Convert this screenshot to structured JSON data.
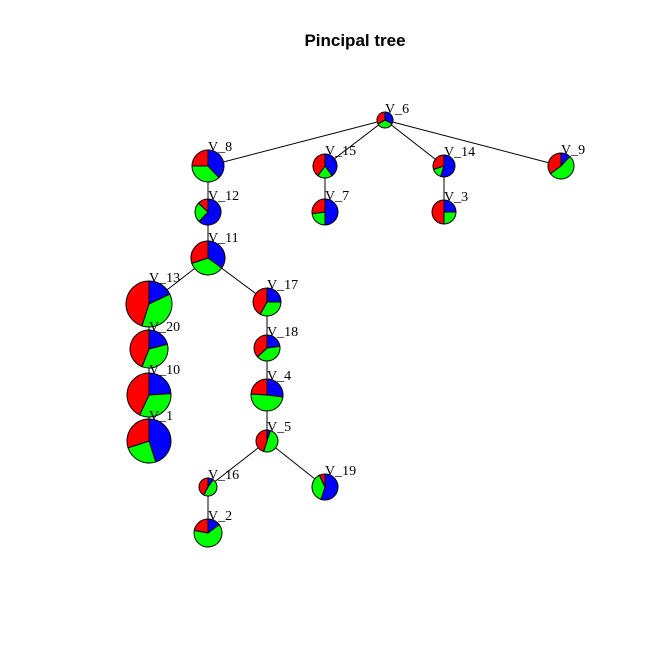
{
  "title": "Pincipal tree",
  "colors": {
    "red": "#ff0000",
    "blue": "#0000ff",
    "green": "#00ff00"
  },
  "nodes": [
    {
      "id": "V_6",
      "label": "V_6",
      "parent": null,
      "fractions": [
        0.33,
        0.33,
        0.34
      ]
    },
    {
      "id": "V_8",
      "label": "V_8",
      "parent": "V_6",
      "fractions": [
        0.25,
        0.38,
        0.37
      ]
    },
    {
      "id": "V_15",
      "label": "V_15",
      "parent": "V_6",
      "fractions": [
        0.4,
        0.4,
        0.2
      ]
    },
    {
      "id": "V_14",
      "label": "V_14",
      "parent": "V_6",
      "fractions": [
        0.3,
        0.55,
        0.15
      ]
    },
    {
      "id": "V_9",
      "label": "V_9",
      "parent": "V_6",
      "fractions": [
        0.35,
        0.12,
        0.53
      ]
    },
    {
      "id": "V_12",
      "label": "V_12",
      "parent": "V_8",
      "fractions": [
        0.13,
        0.62,
        0.25
      ]
    },
    {
      "id": "V_7",
      "label": "V_7",
      "parent": "V_15",
      "fractions": [
        0.27,
        0.5,
        0.23
      ]
    },
    {
      "id": "V_3",
      "label": "V_3",
      "parent": "V_14",
      "fractions": [
        0.5,
        0.25,
        0.25
      ]
    },
    {
      "id": "V_11",
      "label": "V_11",
      "parent": "V_12",
      "fractions": [
        0.3,
        0.35,
        0.35
      ]
    },
    {
      "id": "V_13",
      "label": "V_13",
      "parent": "V_11",
      "fractions": [
        0.45,
        0.18,
        0.37
      ]
    },
    {
      "id": "V_17",
      "label": "V_17",
      "parent": "V_11",
      "fractions": [
        0.42,
        0.25,
        0.33
      ]
    },
    {
      "id": "V_20",
      "label": "V_20",
      "parent": "V_13",
      "fractions": [
        0.44,
        0.21,
        0.35
      ]
    },
    {
      "id": "V_18",
      "label": "V_18",
      "parent": "V_17",
      "fractions": [
        0.37,
        0.23,
        0.4
      ]
    },
    {
      "id": "V_10",
      "label": "V_10",
      "parent": "V_20",
      "fractions": [
        0.43,
        0.24,
        0.33
      ]
    },
    {
      "id": "V_4",
      "label": "V_4",
      "parent": "V_18",
      "fractions": [
        0.24,
        0.27,
        0.49
      ]
    },
    {
      "id": "V_1",
      "label": "V_1",
      "parent": "V_10",
      "fractions": [
        0.3,
        0.45,
        0.25
      ]
    },
    {
      "id": "V_5",
      "label": "V_5",
      "parent": "V_4",
      "fractions": [
        0.45,
        0.05,
        0.5
      ]
    },
    {
      "id": "V_16",
      "label": "V_16",
      "parent": "V_5",
      "fractions": [
        0.42,
        0.1,
        0.48
      ]
    },
    {
      "id": "V_19",
      "label": "V_19",
      "parent": "V_5",
      "fractions": [
        0.07,
        0.55,
        0.38
      ]
    },
    {
      "id": "V_2",
      "label": "V_2",
      "parent": "V_16",
      "fractions": [
        0.22,
        0.15,
        0.63
      ]
    }
  ]
}
